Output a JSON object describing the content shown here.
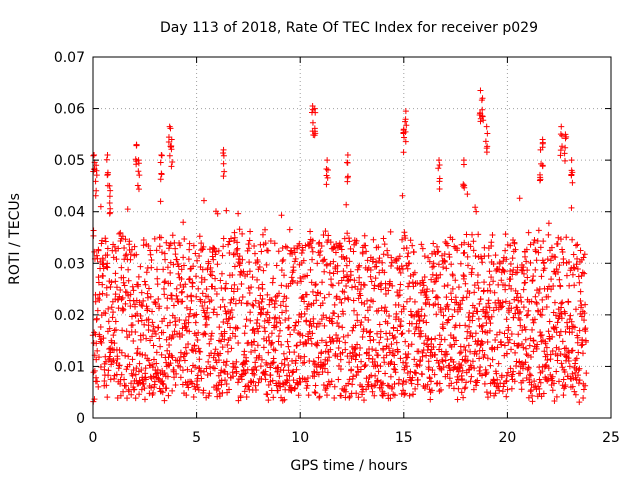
{
  "chart_data": {
    "type": "scatter",
    "title": "Day 113 of 2018, Rate Of TEC Index for receiver p029",
    "xlabel": "GPS time / hours",
    "ylabel": "ROTI / TECUs",
    "xlim": [
      0,
      25
    ],
    "ylim": [
      0,
      0.07
    ],
    "x_ticks": [
      0,
      5,
      10,
      15,
      20,
      25
    ],
    "x_tick_labels": [
      "0",
      "5",
      "10",
      "15",
      "20",
      "25"
    ],
    "y_ticks": [
      0,
      0.01,
      0.02,
      0.03,
      0.04,
      0.05,
      0.06,
      0.07
    ],
    "y_tick_labels": [
      "0",
      "0.01",
      "0.02",
      "0.03",
      "0.04",
      "0.05",
      "0.06",
      "0.07"
    ],
    "grid": true,
    "marker": "+",
    "color": "#ff0000",
    "series": [
      {
        "name": "ROTI",
        "x_range": [
          0,
          23.8
        ],
        "typical_range": [
          0.005,
          0.035
        ],
        "peaks": [
          {
            "x": 0.05,
            "y": 0.051
          },
          {
            "x": 0.15,
            "y": 0.049
          },
          {
            "x": 0.7,
            "y": 0.051
          },
          {
            "x": 0.8,
            "y": 0.045
          },
          {
            "x": 2.1,
            "y": 0.053
          },
          {
            "x": 2.2,
            "y": 0.05
          },
          {
            "x": 3.3,
            "y": 0.051
          },
          {
            "x": 3.7,
            "y": 0.0565
          },
          {
            "x": 3.8,
            "y": 0.054
          },
          {
            "x": 6.3,
            "y": 0.052
          },
          {
            "x": 10.6,
            "y": 0.0605
          },
          {
            "x": 10.7,
            "y": 0.06
          },
          {
            "x": 11.3,
            "y": 0.05
          },
          {
            "x": 12.3,
            "y": 0.051
          },
          {
            "x": 15.1,
            "y": 0.0595
          },
          {
            "x": 15.0,
            "y": 0.056
          },
          {
            "x": 16.7,
            "y": 0.05
          },
          {
            "x": 17.9,
            "y": 0.05
          },
          {
            "x": 18.7,
            "y": 0.0635
          },
          {
            "x": 18.8,
            "y": 0.062
          },
          {
            "x": 19.0,
            "y": 0.0565
          },
          {
            "x": 21.7,
            "y": 0.054
          },
          {
            "x": 21.6,
            "y": 0.052
          },
          {
            "x": 22.6,
            "y": 0.0565
          },
          {
            "x": 22.8,
            "y": 0.055
          },
          {
            "x": 23.1,
            "y": 0.05
          }
        ]
      }
    ]
  }
}
